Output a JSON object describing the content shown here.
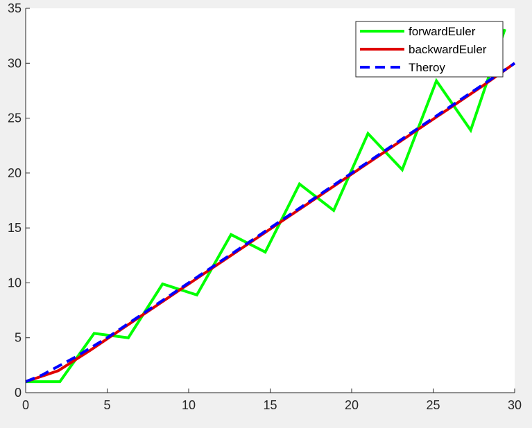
{
  "chart_data": {
    "type": "line",
    "title": "",
    "xlabel": "",
    "ylabel": "",
    "xlim": [
      0,
      30
    ],
    "ylim": [
      0,
      35
    ],
    "xticks": [
      0,
      5,
      10,
      15,
      20,
      25,
      30
    ],
    "yticks": [
      0,
      5,
      10,
      15,
      20,
      25,
      30,
      35
    ],
    "grid": false,
    "legend_position": "top-right",
    "series": [
      {
        "name": "forwardEuler",
        "color": "#00ff00",
        "style": "solid",
        "x": [
          0,
          2.1,
          4.2,
          6.3,
          8.4,
          10.5,
          12.6,
          14.7,
          16.8,
          18.9,
          21.0,
          23.1,
          25.2,
          27.3,
          29.4
        ],
        "y": [
          1.0,
          1.0,
          5.4,
          5.0,
          9.9,
          8.9,
          14.4,
          12.8,
          19.0,
          16.6,
          23.6,
          20.3,
          28.4,
          23.9,
          33.1
        ]
      },
      {
        "name": "backwardEuler",
        "color": "#e00000",
        "style": "solid",
        "x": [
          0,
          2,
          4,
          6,
          8,
          10,
          12,
          14,
          16,
          18,
          20,
          22,
          24,
          26,
          28,
          30
        ],
        "y": [
          1.0,
          2.0,
          3.9,
          5.9,
          7.9,
          9.9,
          11.9,
          13.9,
          15.9,
          17.9,
          19.9,
          21.9,
          23.9,
          25.9,
          27.9,
          30.0
        ]
      },
      {
        "name": "Theroy",
        "color": "#0000ff",
        "style": "dashed",
        "x": [
          0,
          1,
          2,
          3,
          4,
          5,
          6,
          8,
          10,
          12,
          14,
          16,
          18,
          20,
          22,
          24,
          26,
          28,
          30
        ],
        "y": [
          1.0,
          1.6,
          2.4,
          3.2,
          4.1,
          5.0,
          6.0,
          8.0,
          10.0,
          12.0,
          14.0,
          16.0,
          18.0,
          20.0,
          22.0,
          24.0,
          26.0,
          28.0,
          30.0
        ]
      }
    ]
  }
}
